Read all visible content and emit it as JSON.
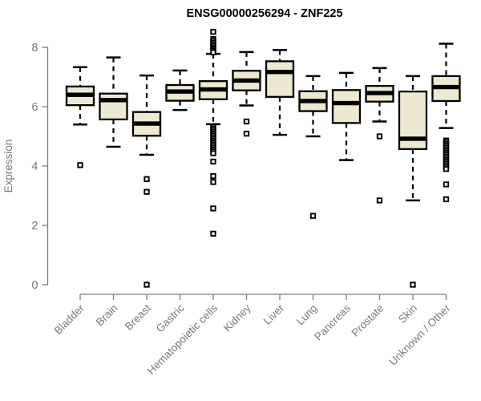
{
  "title": "ENSG00000256294 - ZNF225",
  "chart_data": {
    "type": "box",
    "title": "ENSG00000256294 - ZNF225",
    "xlabel": "",
    "ylabel": "Expression",
    "ylim": [
      0,
      8.6
    ],
    "yticks": [
      0,
      2,
      4,
      6,
      8
    ],
    "grid": false,
    "legend": "none",
    "box_fill": "#EDE8D0",
    "box_stroke": "#000000",
    "median_color": "#000000",
    "outlier_fill": "#ffffff",
    "axis_color": "#7a7a7a",
    "categories": [
      "Bladder",
      "Brain",
      "Breast",
      "Gastric",
      "Hematopoietic cells",
      "Kidney",
      "Liver",
      "Lung",
      "Pancreas",
      "Prostate",
      "Skin",
      "Unknown / Other"
    ],
    "series": [
      {
        "category": "Bladder",
        "whisker_low": 5.4,
        "q1": 6.05,
        "median": 6.4,
        "q3": 6.68,
        "whisker_high": 7.33,
        "outliers": [
          4.03
        ]
      },
      {
        "category": "Brain",
        "whisker_low": 4.65,
        "q1": 5.57,
        "median": 6.22,
        "q3": 6.44,
        "whisker_high": 7.66,
        "outliers": []
      },
      {
        "category": "Breast",
        "whisker_low": 4.38,
        "q1": 5.02,
        "median": 5.43,
        "q3": 5.82,
        "whisker_high": 7.05,
        "outliers": [
          3.56,
          3.13,
          0.0
        ]
      },
      {
        "category": "Gastric",
        "whisker_low": 5.89,
        "q1": 6.2,
        "median": 6.51,
        "q3": 6.73,
        "whisker_high": 7.22,
        "outliers": []
      },
      {
        "category": "Hematopoietic cells",
        "whisker_low": 5.41,
        "q1": 6.25,
        "median": 6.58,
        "q3": 6.86,
        "whisker_high": 7.78,
        "outliers": [
          8.52,
          8.28,
          8.22,
          8.16,
          8.1,
          8.04,
          7.98,
          7.93,
          7.88,
          7.83,
          5.33,
          5.27,
          5.21,
          5.15,
          5.09,
          5.03,
          4.97,
          4.91,
          4.85,
          4.79,
          4.73,
          4.67,
          4.61,
          4.55,
          4.49,
          4.43,
          4.15,
          3.66,
          3.46,
          2.57,
          1.72
        ]
      },
      {
        "category": "Kidney",
        "whisker_low": 6.04,
        "q1": 6.55,
        "median": 6.88,
        "q3": 7.21,
        "whisker_high": 7.84,
        "outliers": [
          5.5,
          5.09
        ]
      },
      {
        "category": "Liver",
        "whisker_low": 5.05,
        "q1": 6.33,
        "median": 7.17,
        "q3": 7.53,
        "whisker_high": 7.91,
        "outliers": []
      },
      {
        "category": "Lung",
        "whisker_low": 5.0,
        "q1": 5.85,
        "median": 6.19,
        "q3": 6.52,
        "whisker_high": 7.03,
        "outliers": [
          2.32
        ]
      },
      {
        "category": "Pancreas",
        "whisker_low": 4.2,
        "q1": 5.45,
        "median": 6.12,
        "q3": 6.56,
        "whisker_high": 7.14,
        "outliers": []
      },
      {
        "category": "Prostate",
        "whisker_low": 5.5,
        "q1": 6.17,
        "median": 6.46,
        "q3": 6.7,
        "whisker_high": 7.3,
        "outliers": [
          5.0,
          2.84
        ]
      },
      {
        "category": "Skin",
        "whisker_low": 2.84,
        "q1": 4.57,
        "median": 4.92,
        "q3": 6.51,
        "whisker_high": 7.03,
        "outliers": [
          0.0
        ]
      },
      {
        "category": "Unknown / Other",
        "whisker_low": 5.28,
        "q1": 6.19,
        "median": 6.66,
        "q3": 7.03,
        "whisker_high": 8.12,
        "outliers": [
          4.86,
          4.8,
          4.74,
          4.68,
          4.62,
          4.56,
          4.5,
          4.44,
          4.38,
          4.32,
          4.26,
          4.2,
          4.14,
          4.08,
          4.02,
          3.96,
          3.9,
          3.38,
          2.88
        ]
      }
    ]
  }
}
